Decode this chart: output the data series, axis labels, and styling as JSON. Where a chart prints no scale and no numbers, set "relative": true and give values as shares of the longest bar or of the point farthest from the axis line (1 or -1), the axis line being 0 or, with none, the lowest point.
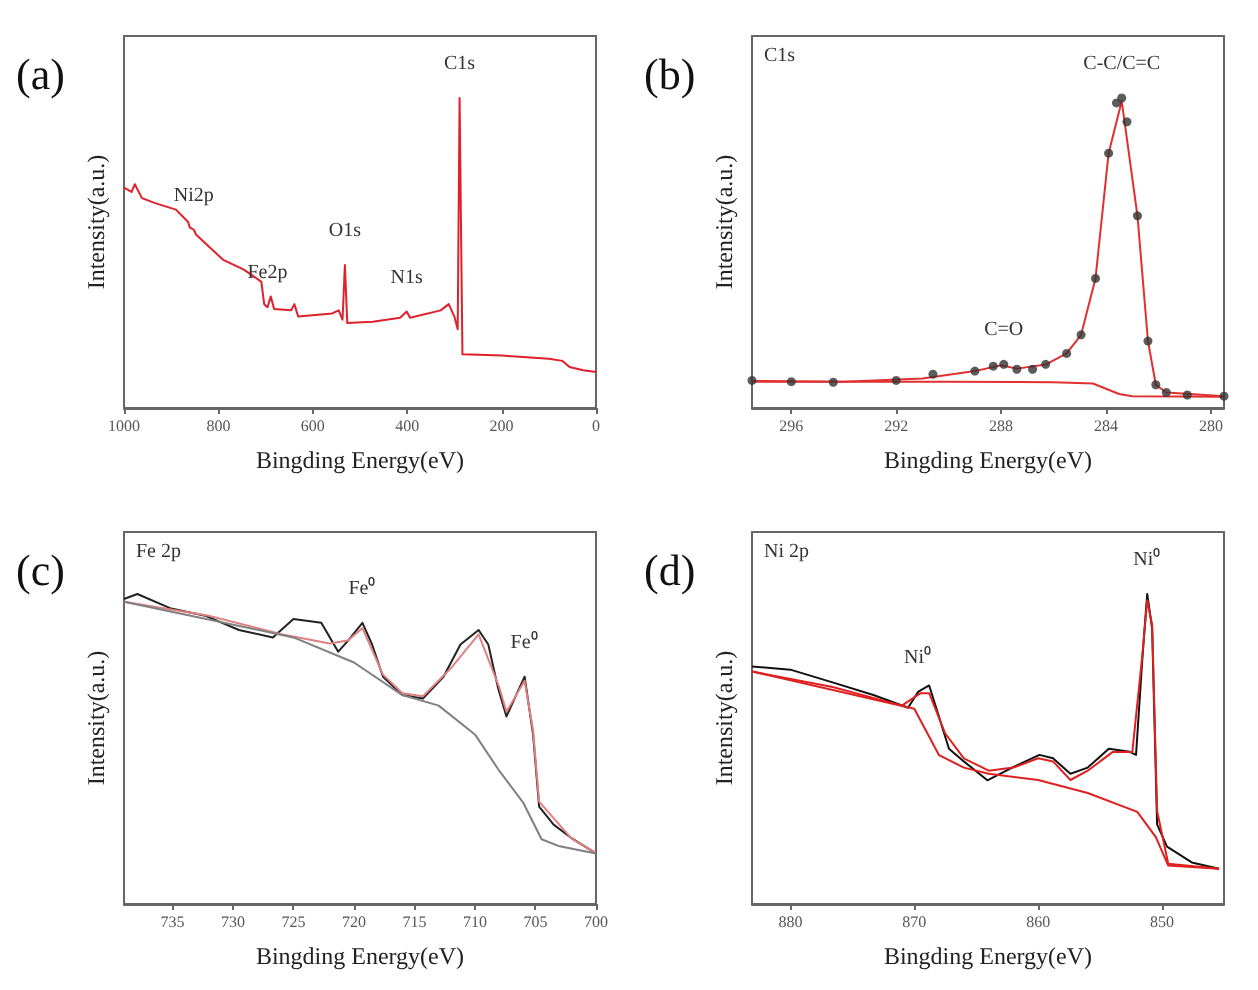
{
  "chart_data": [
    {
      "type": "line",
      "title": "(a)",
      "xlabel": "Bingding Energy(eV)",
      "ylabel": "Intensity(a.u.)",
      "relative": true,
      "tick_labels": "x",
      "xlim": [
        1000,
        0
      ],
      "xticks": [
        1000,
        800,
        600,
        400,
        200,
        0
      ],
      "annotations": [
        {
          "text": "C1s",
          "x": 289,
          "y": 1
        },
        {
          "text": "Ni2p",
          "x": 852,
          "y": 0.575
        },
        {
          "text": "Fe2p",
          "x": 696,
          "y": 0.325
        },
        {
          "text": "O1s",
          "x": 532,
          "y": 0.461
        },
        {
          "text": "N1s",
          "x": 401,
          "y": 0.311
        }
      ],
      "series": [
        {
          "color": "#e0202a",
          "x": [
            1000,
            984,
            977,
            962,
            934,
            890,
            864,
            861,
            852,
            847,
            790,
            747,
            718,
            709,
            703,
            696,
            689,
            682,
            646,
            639,
            631,
            559,
            545,
            537,
            532,
            527,
            473,
            415,
            401,
            394,
            329,
            312,
            300,
            293,
            289,
            283,
            199,
            100,
            71,
            56,
            27,
            0
          ],
          "values": [
            0.711,
            0.697,
            0.722,
            0.677,
            0.661,
            0.64,
            0.6,
            0.583,
            0.575,
            0.559,
            0.478,
            0.447,
            0.417,
            0.407,
            0.335,
            0.325,
            0.36,
            0.319,
            0.315,
            0.335,
            0.295,
            0.305,
            0.315,
            0.285,
            0.461,
            0.274,
            0.278,
            0.291,
            0.311,
            0.291,
            0.315,
            0.335,
            0.295,
            0.254,
            1,
            0.173,
            0.169,
            0.159,
            0.152,
            0.132,
            0.122,
            0.116
          ]
        }
      ]
    },
    {
      "type": "line",
      "title": "(b)",
      "xlabel": "Bingding Energy(eV)",
      "ylabel": "Intensity(a.u.)",
      "relative": true,
      "tick_labels": "x",
      "xlim": [
        297.5,
        279.5
      ],
      "xticks": [
        296,
        292,
        288,
        284,
        280
      ],
      "annotations": [
        "C1s",
        {
          "text": "C-C/C=C",
          "x": 283.4,
          "y": 1
        },
        {
          "text": "C=O",
          "x": 287.9,
          "y": 0.141
        }
      ],
      "series": [
        {
          "type": "scatter",
          "marker": "circle",
          "color": "#333333",
          "x": [
            297.5,
            296,
            294.4,
            292,
            290.6,
            289,
            288.3,
            287.9,
            287.4,
            286.8,
            286.3,
            285.5,
            284.95,
            284.4,
            283.9,
            283.6,
            283.4,
            283.2,
            282.8,
            282.4,
            282.1,
            281.7,
            280.9,
            279.5
          ],
          "values": [
            0.089,
            0.085,
            0.083,
            0.089,
            0.109,
            0.119,
            0.135,
            0.141,
            0.125,
            0.125,
            0.141,
            0.176,
            0.236,
            0.418,
            0.822,
            0.984,
            1,
            0.923,
            0.62,
            0.216,
            0.075,
            0.05,
            0.042,
            0.038
          ]
        },
        {
          "color": "#e03030",
          "x": [
            297.5,
            294,
            291,
            289,
            288,
            287.4,
            286.3,
            285.5,
            284.95,
            284.4,
            283.9,
            283.4,
            282.8,
            282.4,
            282.1,
            281.7,
            279.5
          ],
          "values": [
            0.087,
            0.085,
            0.095,
            0.119,
            0.138,
            0.127,
            0.14,
            0.176,
            0.236,
            0.418,
            0.822,
            0.99,
            0.62,
            0.216,
            0.075,
            0.05,
            0.038
          ]
        },
        {
          "color": "#e03030",
          "x": [
            297.5,
            290,
            286,
            284.5,
            284,
            283.5,
            283,
            279.5
          ],
          "values": [
            0.085,
            0.085,
            0.083,
            0.079,
            0.062,
            0.045,
            0.038,
            0.036
          ]
        }
      ]
    },
    {
      "type": "line",
      "title": "(c)",
      "xlabel": "Bingding Energy(eV)",
      "ylabel": "Intensity(a.u.)",
      "relative": true,
      "tick_labels": "x",
      "xlim": [
        739,
        700
      ],
      "xticks": [
        735,
        730,
        725,
        720,
        715,
        710,
        705,
        700
      ],
      "annotations": [
        "Fe 2p",
        {
          "text": "Fe⁰",
          "x": 719.3,
          "y": 0.907
        },
        {
          "text": "Fe⁰",
          "x": 705.9,
          "y": 0.733
        }
      ],
      "series": [
        {
          "color": "#222222",
          "x": [
            739,
            737.9,
            735.1,
            732.3,
            729.5,
            726.7,
            725,
            722.7,
            721.3,
            720.5,
            719.3,
            718.5,
            717.6,
            716,
            714.3,
            712.6,
            711.2,
            709.7,
            708.9,
            708.1,
            707.4,
            706.6,
            705.9,
            705.2,
            704.7,
            703.5,
            701.9,
            700
          ],
          "values": [
            0.984,
            1,
            0.953,
            0.93,
            0.884,
            0.86,
            0.919,
            0.907,
            0.814,
            0.849,
            0.907,
            0.837,
            0.733,
            0.674,
            0.663,
            0.733,
            0.837,
            0.884,
            0.837,
            0.698,
            0.605,
            0.674,
            0.733,
            0.547,
            0.314,
            0.256,
            0.209,
            0.163
          ]
        },
        {
          "color": "#e08080",
          "x": [
            739,
            732,
            726,
            722,
            720.5,
            719.3,
            717.6,
            716,
            714.3,
            712,
            709.7,
            708,
            707.4,
            705.9,
            705.2,
            704.7,
            702,
            700
          ],
          "values": [
            0.975,
            0.93,
            0.87,
            0.84,
            0.85,
            0.89,
            0.74,
            0.68,
            0.67,
            0.76,
            0.87,
            0.7,
            0.62,
            0.72,
            0.56,
            0.33,
            0.21,
            0.165
          ]
        },
        {
          "color": "#808080",
          "x": [
            739,
            725,
            720,
            716,
            713,
            710,
            708,
            706,
            704.5,
            703,
            700
          ],
          "values": [
            0.975,
            0.86,
            0.779,
            0.674,
            0.64,
            0.547,
            0.43,
            0.326,
            0.209,
            0.186,
            0.163
          ]
        }
      ]
    },
    {
      "type": "line",
      "title": "(d)",
      "xlabel": "Bingding Energy(eV)",
      "ylabel": "Intensity(a.u.)",
      "relative": true,
      "tick_labels": "x",
      "xlim": [
        883.1,
        845
      ],
      "xticks": [
        880,
        870,
        860,
        850
      ],
      "annotations": [
        "Ni 2p",
        {
          "text": "Ni⁰",
          "x": 869.7,
          "y": 0.684
        },
        {
          "text": "Ni⁰",
          "x": 851.2,
          "y": 1
        }
      ],
      "series": [
        {
          "color": "#111111",
          "x": [
            883.1,
            880,
            876.6,
            873.3,
            870.5,
            869.7,
            868.8,
            868,
            867.2,
            866,
            864.1,
            862.1,
            859.9,
            858.8,
            857.4,
            856,
            854.3,
            852.6,
            852.1,
            851.6,
            851.2,
            850.8,
            850.4,
            849.6,
            847.6,
            845.4
          ],
          "values": [
            0.766,
            0.756,
            0.715,
            0.674,
            0.633,
            0.684,
            0.705,
            0.603,
            0.501,
            0.46,
            0.399,
            0.44,
            0.481,
            0.47,
            0.42,
            0.44,
            0.501,
            0.491,
            0.481,
            0.786,
            1,
            0.888,
            0.257,
            0.185,
            0.134,
            0.114
          ]
        },
        {
          "color": "#e02020",
          "x": [
            883.1,
            876.6,
            871,
            869.5,
            868.8,
            867.5,
            866,
            864,
            862,
            860,
            858.8,
            857.4,
            856,
            854,
            852.4,
            851.6,
            851.2,
            850.8,
            850.4,
            849.5,
            845.4
          ],
          "values": [
            0.75,
            0.7,
            0.64,
            0.68,
            0.68,
            0.55,
            0.47,
            0.43,
            0.44,
            0.47,
            0.46,
            0.4,
            0.43,
            0.49,
            0.49,
            0.8,
            0.98,
            0.9,
            0.3,
            0.13,
            0.114
          ]
        },
        {
          "color": "#e02020",
          "x": [
            883.1,
            870,
            868,
            866,
            864,
            860,
            856,
            852,
            850.5,
            849.5,
            845.4
          ],
          "values": [
            0.75,
            0.63,
            0.48,
            0.44,
            0.42,
            0.4,
            0.358,
            0.297,
            0.216,
            0.124,
            0.114
          ]
        }
      ]
    }
  ]
}
